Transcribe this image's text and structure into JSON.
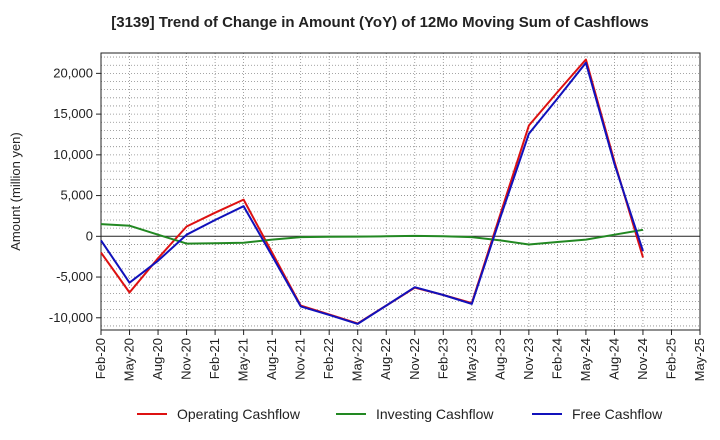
{
  "chart_data": {
    "type": "line",
    "title": "[3139]  Trend of Change in Amount (YoY) of 12Mo Moving Sum of Cashflows",
    "xlabel": "",
    "ylabel": "Amount (million yen)",
    "ylim": [
      -11500,
      22500
    ],
    "yticks": [
      20000,
      15000,
      10000,
      5000,
      0,
      -5000,
      -10000
    ],
    "ytick_labels": [
      "20,000",
      "15,000",
      "10,000",
      "5,000",
      "0",
      "-5,000",
      "-10,000"
    ],
    "categories": [
      "Feb-20",
      "May-20",
      "Aug-20",
      "Nov-20",
      "Feb-21",
      "May-21",
      "Aug-21",
      "Nov-21",
      "Feb-22",
      "May-22",
      "Aug-22",
      "Nov-22",
      "Feb-23",
      "May-23",
      "Aug-23",
      "Nov-23",
      "Feb-24",
      "May-24",
      "Aug-24",
      "Nov-24",
      "Feb-25",
      "May-25"
    ],
    "grid": true,
    "legend_position": "bottom",
    "series": [
      {
        "name": "Operating Cashflow",
        "color": "#dd1111",
        "values": [
          -2000,
          -6900,
          -2700,
          1200,
          2900,
          4500,
          -2000,
          -8500,
          -9600,
          -10700,
          -8500,
          -6300,
          -7200,
          -8200,
          2700,
          13600,
          17700,
          21700,
          9200,
          -2600,
          null,
          null
        ]
      },
      {
        "name": "Investing Cashflow",
        "color": "#228822",
        "values": [
          1500,
          1300,
          200,
          -900,
          -850,
          -800,
          -400,
          -100,
          -50,
          -30,
          0,
          50,
          0,
          -100,
          -500,
          -1000,
          -700,
          -400,
          200,
          800,
          null,
          null
        ]
      },
      {
        "name": "Free Cashflow",
        "color": "#1111bb",
        "values": [
          -500,
          -5700,
          -3000,
          200,
          2000,
          3700,
          -2400,
          -8600,
          -9650,
          -10750,
          -8500,
          -6250,
          -7200,
          -8300,
          2300,
          12600,
          16900,
          21300,
          8900,
          -1800,
          null,
          null
        ]
      }
    ]
  }
}
